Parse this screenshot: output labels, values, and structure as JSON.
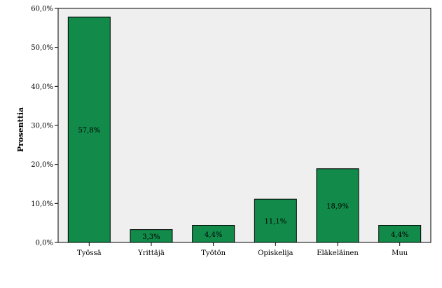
{
  "chart_data": {
    "type": "bar",
    "categories": [
      "Työssä",
      "Yrittäjä",
      "Työtön",
      "Opiskelija",
      "Eläkeläinen",
      "Muu"
    ],
    "values": [
      57.8,
      3.3,
      4.4,
      11.1,
      18.9,
      4.4
    ],
    "data_labels": [
      "57,8%",
      "3,3%",
      "4,4%",
      "11,1%",
      "18,9%",
      "4,4%"
    ],
    "ylabel": "Prosenttia",
    "ylim": [
      0,
      60
    ],
    "yticks": [
      0,
      10,
      20,
      30,
      40,
      50,
      60
    ],
    "ytick_labels": [
      "0,0%",
      "10,0%",
      "20,0%",
      "30,0%",
      "40,0%",
      "50,0%",
      "60,0%"
    ],
    "grid": false,
    "colors": {
      "bar_fill": "#118a4a",
      "bar_stroke": "#000000",
      "plot_background": "#efefef"
    }
  }
}
